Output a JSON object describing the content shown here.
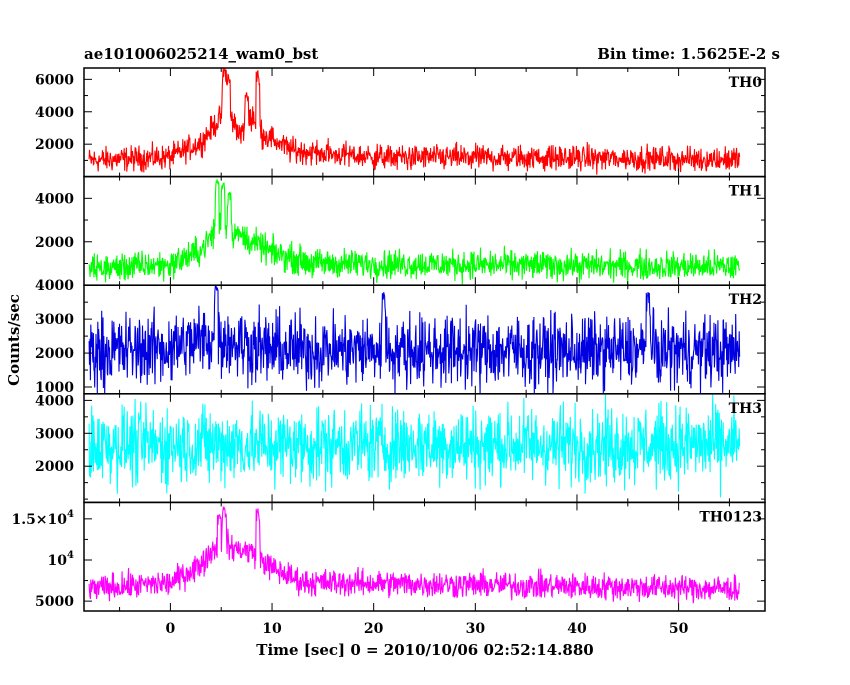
{
  "header": {
    "title": "ae101006025214_wam0_bst",
    "bin_time": "Bin time: 1.5625E-2 s"
  },
  "chart_data": {
    "type": "line",
    "xlabel": "Time [sec] 0 = 2010/10/06 02:52:14.880",
    "ylabel": "Counts/sec",
    "xlim": [
      -8.5,
      58.5
    ],
    "x_ticks": [
      0,
      10,
      20,
      30,
      40,
      50
    ],
    "x_tick_labels": [
      "0",
      "10",
      "20",
      "30",
      "40",
      "50"
    ],
    "panels": [
      {
        "name": "TH0",
        "color": "#ff0000",
        "ylim": [
          0,
          6700
        ],
        "y_ticks": [
          2000,
          4000,
          6000
        ],
        "y_tick_labels": [
          "2000",
          "4000",
          "6000"
        ],
        "profile": [
          [
            -8,
            1000
          ],
          [
            0,
            1200
          ],
          [
            3,
            2100
          ],
          [
            5,
            3700
          ],
          [
            6,
            3500
          ],
          [
            7,
            2600
          ],
          [
            8,
            3800
          ],
          [
            9,
            2700
          ],
          [
            12,
            1600
          ],
          [
            20,
            1200
          ],
          [
            40,
            1150
          ],
          [
            56,
            1050
          ]
        ],
        "noise": 380,
        "peaks": [
          [
            5.3,
            6700
          ],
          [
            5.7,
            6300
          ],
          [
            8.6,
            6600
          ],
          [
            7.5,
            5200
          ]
        ]
      },
      {
        "name": "TH1",
        "color": "#00ff00",
        "ylim": [
          0,
          5000
        ],
        "y_ticks": [
          2000,
          4000
        ],
        "y_tick_labels": [
          "2000",
          "4000"
        ],
        "profile": [
          [
            -8,
            750
          ],
          [
            0,
            950
          ],
          [
            3,
            1600
          ],
          [
            5,
            2900
          ],
          [
            6,
            2500
          ],
          [
            8,
            2000
          ],
          [
            10,
            1500
          ],
          [
            14,
            1000
          ],
          [
            56,
            850
          ]
        ],
        "noise": 330,
        "peaks": [
          [
            4.6,
            4900
          ],
          [
            5.2,
            4700
          ],
          [
            5.8,
            4300
          ]
        ]
      },
      {
        "name": "TH2",
        "color": "#0000e0",
        "ylim": [
          800,
          4000
        ],
        "y_ticks": [
          1000,
          2000,
          3000,
          4000
        ],
        "y_tick_labels": [
          "1000",
          "2000",
          "3000",
          "4000"
        ],
        "profile": [
          [
            -8,
            2050
          ],
          [
            0,
            2150
          ],
          [
            4,
            2450
          ],
          [
            6,
            2350
          ],
          [
            10,
            2100
          ],
          [
            56,
            2050
          ]
        ],
        "noise": 520,
        "peaks": [
          [
            4.5,
            4000
          ],
          [
            21,
            3800
          ],
          [
            47,
            3800
          ]
        ]
      },
      {
        "name": "TH3",
        "color": "#00ffff",
        "ylim": [
          900,
          4200
        ],
        "y_ticks": [
          2000,
          3000,
          4000
        ],
        "y_tick_labels": [
          "2000",
          "3000",
          "4000"
        ],
        "profile": [
          [
            -8,
            2650
          ],
          [
            56,
            2650
          ]
        ],
        "noise": 580,
        "peaks": []
      },
      {
        "name": "TH0123",
        "color": "#ff00ff",
        "ylim": [
          3800,
          17000
        ],
        "y_ticks": [
          5000,
          10000,
          15000
        ],
        "y_tick_labels": [
          "5000",
          "10^4",
          "1.5×10^4"
        ],
        "profile": [
          [
            -8,
            6500
          ],
          [
            0,
            7200
          ],
          [
            3,
            9500
          ],
          [
            5,
            12500
          ],
          [
            6,
            11500
          ],
          [
            8,
            11000
          ],
          [
            10,
            9000
          ],
          [
            13,
            7300
          ],
          [
            56,
            6500
          ]
        ],
        "noise": 800,
        "peaks": [
          [
            5.3,
            16500
          ],
          [
            8.6,
            16300
          ],
          [
            4.8,
            15500
          ]
        ]
      }
    ]
  }
}
